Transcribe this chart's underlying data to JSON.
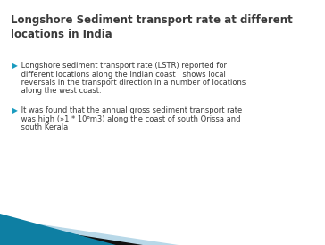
{
  "title": "Longshore Sediment transport rate at different\nlocations in India",
  "title_color": "#3a3a3a",
  "title_fontsize": 8.5,
  "bg_color": "#ffffff",
  "bullet1_line1": " Longshore sediment transport rate (LSTR) reported for",
  "bullet1_line2": " different locations along the Indian coast   shows local",
  "bullet1_line3": " reversals in the transport direction in a number of locations",
  "bullet1_line4": " along the west coast.",
  "bullet2_line1": " It was found that the annual gross sediment transport rate",
  "bullet2_line2": " was high (»1 * 10⁶m3) along the coast of south Orissa and",
  "bullet2_line3": " south Kerala",
  "bullet_color": "#3a3a3a",
  "bullet_fontsize": 6.0,
  "bullet_marker": "▶",
  "arrow_color": "#1a9bbf",
  "bottom_teal": "#0e7fa3",
  "bottom_light": "#b8d8e8",
  "bottom_black": "#111111"
}
